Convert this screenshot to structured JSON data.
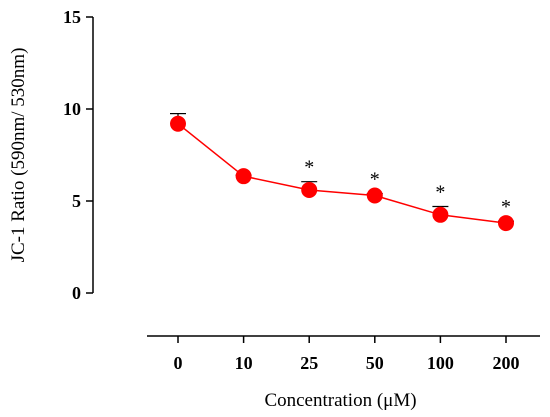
{
  "chart_data": {
    "type": "line",
    "title": "",
    "xlabel": "Concentration (μM)",
    "ylabel": "JC-1 Ratio (590nm/ 530nm)",
    "categories": [
      "0",
      "10",
      "25",
      "50",
      "100",
      "200"
    ],
    "ylim": [
      0,
      15
    ],
    "y_ticks": [
      0,
      5,
      10,
      15
    ],
    "grid": false,
    "series": [
      {
        "values": [
          9.2,
          6.35,
          5.6,
          5.3,
          4.25,
          3.8
        ],
        "error_upper": [
          0.55,
          0.05,
          0.45,
          0.1,
          0.45,
          0.1
        ],
        "significance": [
          "",
          "",
          "*",
          "*",
          "*",
          "*"
        ],
        "color": "#ff0000"
      }
    ],
    "axis_color": "#000000"
  }
}
